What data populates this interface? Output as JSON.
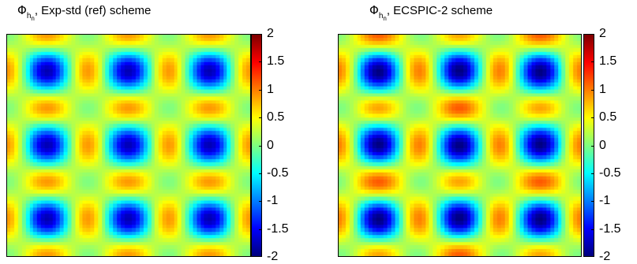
{
  "chart_data": [
    {
      "type": "heatmap",
      "title_symbol": "Φ",
      "title_sub": "h",
      "title_subsub": "n",
      "title_text": ", Exp-std (ref) scheme",
      "colormap": "jet",
      "grid_resolution": 64,
      "colorbar_range": [
        -2,
        2
      ],
      "colorbar_ticks": [
        "2",
        "1.5",
        "1",
        "0.5",
        "0",
        "-0.5",
        "-1",
        "-1.5",
        "-2"
      ],
      "pattern": {
        "minima_blobs": "3x3",
        "maxima_blobs": "2x2 plus edges",
        "amplitude": 1.8
      }
    },
    {
      "type": "heatmap",
      "title_symbol": "Φ",
      "title_sub": "h",
      "title_subsub": "n",
      "title_text": ", ECSPIC-2 scheme",
      "colormap": "jet",
      "grid_resolution": 64,
      "colorbar_range": [
        -2,
        2
      ],
      "colorbar_ticks": [
        "2",
        "1.5",
        "1",
        "0.5",
        "0",
        "-0.5",
        "-1",
        "-1.5",
        "-2"
      ],
      "pattern": {
        "minima_blobs": "3x3",
        "maxima_blobs": "2x2 plus edges",
        "amplitude": 2.0
      }
    }
  ]
}
